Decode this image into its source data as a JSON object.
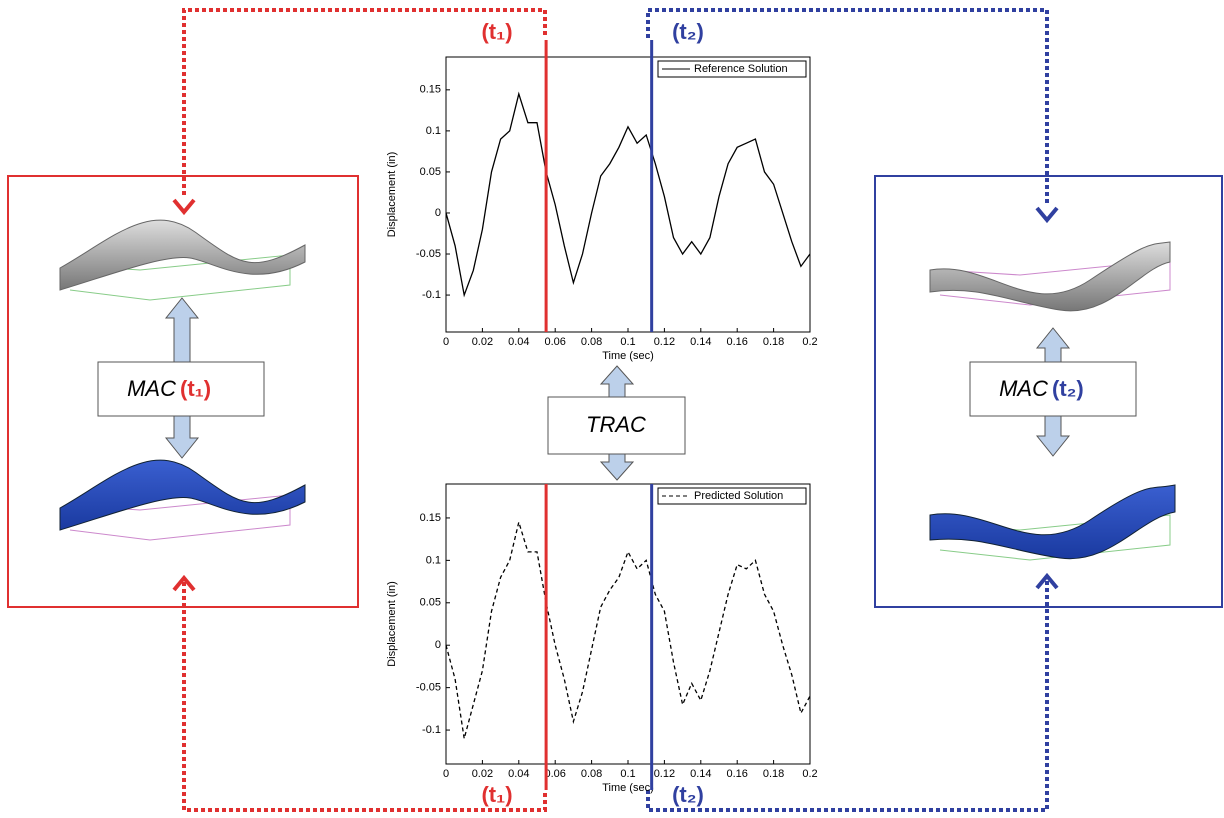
{
  "chart_data": [
    {
      "type": "line",
      "x_label": "Time (sec)",
      "y_label": "Displacement (in)",
      "x": [
        0,
        0.005,
        0.01,
        0.015,
        0.02,
        0.025,
        0.03,
        0.035,
        0.04,
        0.045,
        0.05,
        0.055,
        0.06,
        0.065,
        0.07,
        0.075,
        0.08,
        0.085,
        0.09,
        0.095,
        0.1,
        0.105,
        0.11,
        0.115,
        0.12,
        0.125,
        0.13,
        0.135,
        0.14,
        0.145,
        0.15,
        0.155,
        0.16,
        0.165,
        0.17,
        0.175,
        0.18,
        0.185,
        0.19,
        0.195,
        0.2
      ],
      "series": [
        {
          "name": "Reference Solution",
          "color": "#000000",
          "dashed": false,
          "values": [
            0,
            -0.04,
            -0.1,
            -0.07,
            -0.02,
            0.05,
            0.09,
            0.1,
            0.145,
            0.11,
            0.11,
            0.05,
            0.01,
            -0.04,
            -0.085,
            -0.05,
            0,
            0.045,
            0.06,
            0.08,
            0.105,
            0.085,
            0.095,
            0.06,
            0.02,
            -0.03,
            -0.05,
            -0.035,
            -0.05,
            -0.03,
            0.02,
            0.06,
            0.08,
            0.085,
            0.09,
            0.05,
            0.035,
            0,
            -0.035,
            -0.065,
            -0.05
          ]
        }
      ],
      "xlim": [
        0,
        0.2
      ],
      "ylim": [
        -0.145,
        0.19
      ],
      "xticks": [
        0,
        0.02,
        0.04,
        0.06,
        0.08,
        0.1,
        0.12,
        0.14,
        0.16,
        0.18,
        0.2
      ],
      "yticks": [
        -0.1,
        -0.05,
        0,
        0.05,
        0.1,
        0.15
      ],
      "markers": [
        {
          "value": 0.055,
          "color": "#e03030"
        },
        {
          "value": 0.113,
          "color": "#3040a0"
        }
      ]
    },
    {
      "type": "line",
      "x_label": "Time (sec)",
      "y_label": "Displacement (in)",
      "x": [
        0,
        0.005,
        0.01,
        0.015,
        0.02,
        0.025,
        0.03,
        0.035,
        0.04,
        0.045,
        0.05,
        0.055,
        0.06,
        0.065,
        0.07,
        0.075,
        0.08,
        0.085,
        0.09,
        0.095,
        0.1,
        0.105,
        0.11,
        0.115,
        0.12,
        0.125,
        0.13,
        0.135,
        0.14,
        0.145,
        0.15,
        0.155,
        0.16,
        0.165,
        0.17,
        0.175,
        0.18,
        0.185,
        0.19,
        0.195,
        0.2
      ],
      "series": [
        {
          "name": "Predicted Solution",
          "color": "#000000",
          "dashed": true,
          "values": [
            0,
            -0.04,
            -0.11,
            -0.07,
            -0.03,
            0.04,
            0.08,
            0.1,
            0.145,
            0.11,
            0.11,
            0.05,
            0,
            -0.04,
            -0.09,
            -0.055,
            -0.005,
            0.045,
            0.065,
            0.08,
            0.11,
            0.09,
            0.1,
            0.06,
            0.04,
            -0.02,
            -0.07,
            -0.045,
            -0.065,
            -0.03,
            0.015,
            0.06,
            0.095,
            0.09,
            0.1,
            0.06,
            0.04,
            0,
            -0.035,
            -0.08,
            -0.06
          ]
        }
      ],
      "xlim": [
        0,
        0.2
      ],
      "ylim": [
        -0.14,
        0.19
      ],
      "xticks": [
        0,
        0.02,
        0.04,
        0.06,
        0.08,
        0.1,
        0.12,
        0.14,
        0.16,
        0.18,
        0.2
      ],
      "yticks": [
        -0.1,
        -0.05,
        0,
        0.05,
        0.1,
        0.15
      ],
      "markers": [
        {
          "value": 0.055,
          "color": "#e03030"
        },
        {
          "value": 0.113,
          "color": "#3040a0"
        }
      ]
    }
  ],
  "diagram": {
    "t1": "(t₁)",
    "t2": "(t₂)",
    "mac": "MAC",
    "trac": "TRAC"
  }
}
